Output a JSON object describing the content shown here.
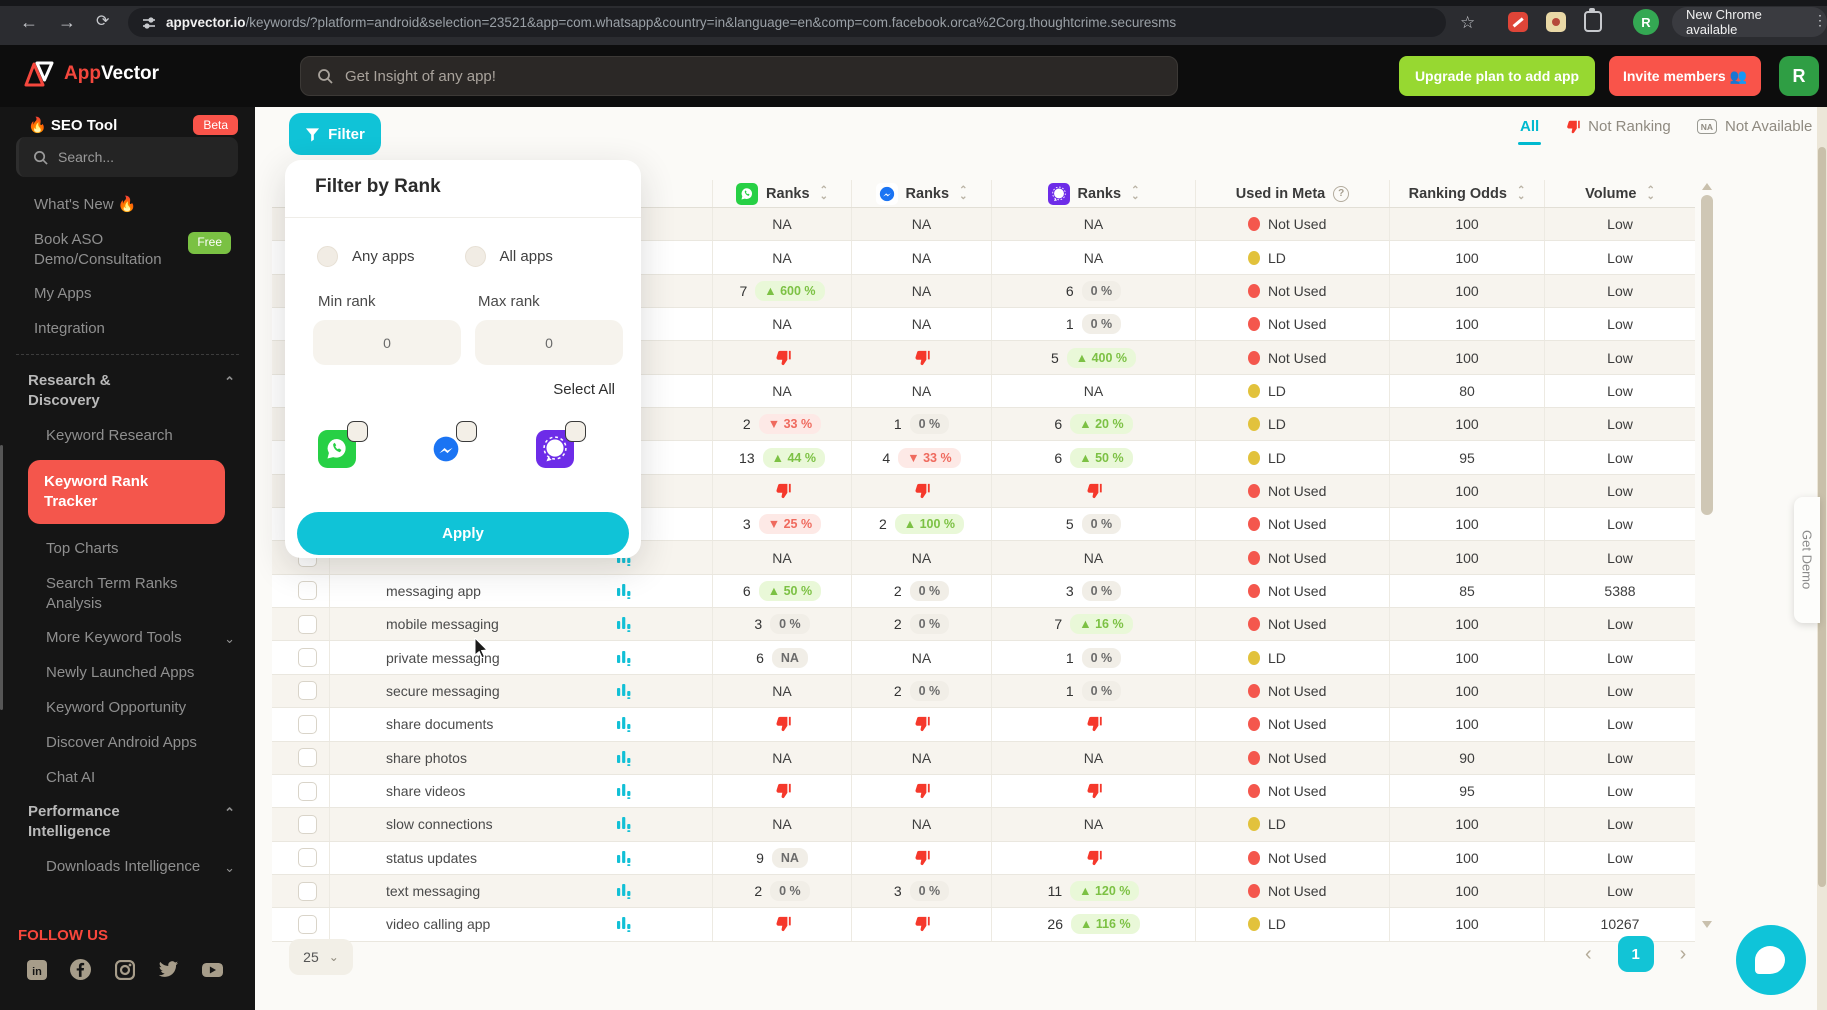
{
  "browser": {
    "url_host": "appvector.io",
    "url_rest": "/keywords/?platform=android&selection=23521&app=com.whatsapp&country=in&language=en&comp=com.facebook.orca%2Corg.thoughtcrime.securesms",
    "new_chrome_label": "New Chrome available",
    "profile_initial": "R"
  },
  "header": {
    "logo_primary": "App",
    "logo_secondary": "Vector",
    "search_placeholder": "Get Insight of any app!",
    "upgrade_label": "Upgrade plan to add app",
    "invite_label": "Invite members 👥",
    "avatar_initial": "R"
  },
  "sidebar": {
    "tool_title": "🔥 SEO Tool",
    "tool_badge": "Beta",
    "search_placeholder": "Search...",
    "items": [
      {
        "label": "What's New 🔥"
      },
      {
        "label": "Book ASO Demo/Consultation",
        "badge": "Free"
      },
      {
        "label": "My Apps"
      },
      {
        "label": "Integration"
      },
      {
        "type": "divider"
      },
      {
        "label": "Research & Discovery",
        "type": "section",
        "chevron": "up"
      },
      {
        "label": "Keyword Research",
        "indent": 1
      },
      {
        "label": "Keyword Rank Tracker",
        "indent": 1,
        "active": true
      },
      {
        "label": "Top Charts",
        "indent": 1
      },
      {
        "label": "Search Term Ranks Analysis",
        "indent": 1
      },
      {
        "label": "More Keyword Tools",
        "indent": 1,
        "chevron": "down"
      },
      {
        "label": "Newly Launched Apps",
        "indent": 1
      },
      {
        "label": "Keyword Opportunity",
        "indent": 1
      },
      {
        "label": "Discover Android Apps",
        "indent": 1
      },
      {
        "label": "Chat AI",
        "indent": 1
      },
      {
        "label": "Performance Intelligence",
        "type": "section",
        "chevron": "up"
      },
      {
        "label": "Downloads Intelligence",
        "indent": 1,
        "chevron": "down"
      }
    ],
    "follow_us": "FOLLOW US",
    "social": [
      "linkedin",
      "facebook",
      "instagram",
      "twitter",
      "youtube"
    ]
  },
  "view_tabs": {
    "all": "All",
    "not_ranking": "Not Ranking",
    "not_available_abbr": "NA",
    "not_available": "Not Available"
  },
  "filter": {
    "button_label": "Filter",
    "title": "Filter by Rank",
    "any_apps": "Any apps",
    "all_apps": "All apps",
    "min_label": "Min rank",
    "max_label": "Max rank",
    "min_value": "0",
    "max_value": "0",
    "select_all": "Select All",
    "apply_label": "Apply",
    "apps": [
      "whatsapp",
      "messenger",
      "signal"
    ]
  },
  "table": {
    "columns": {
      "ranks": "Ranks",
      "used_in_meta": "Used in Meta",
      "ranking_odds": "Ranking Odds",
      "volume": "Volume"
    },
    "rank_apps": [
      "whatsapp",
      "messenger",
      "signal"
    ],
    "rows": [
      {
        "kw": "",
        "wa": {
          "t": "na"
        },
        "ms": {
          "t": "na"
        },
        "sg": {
          "t": "na"
        },
        "meta": {
          "label": "Not Used",
          "dot": "red"
        },
        "odds": "100",
        "vol": "Low"
      },
      {
        "kw": "",
        "wa": {
          "t": "na"
        },
        "ms": {
          "t": "na"
        },
        "sg": {
          "t": "na"
        },
        "meta": {
          "label": "LD",
          "dot": "yellow"
        },
        "odds": "100",
        "vol": "Low"
      },
      {
        "kw": "",
        "wa": {
          "t": "v",
          "r": "7",
          "c": "600 %",
          "d": "up"
        },
        "ms": {
          "t": "na"
        },
        "sg": {
          "t": "v",
          "r": "6",
          "c": "0 %",
          "d": "flat"
        },
        "meta": {
          "label": "Not Used",
          "dot": "red"
        },
        "odds": "100",
        "vol": "Low"
      },
      {
        "kw": "",
        "wa": {
          "t": "na"
        },
        "ms": {
          "t": "na"
        },
        "sg": {
          "t": "v",
          "r": "1",
          "c": "0 %",
          "d": "flat"
        },
        "meta": {
          "label": "Not Used",
          "dot": "red"
        },
        "odds": "100",
        "vol": "Low"
      },
      {
        "kw": "",
        "wa": {
          "t": "nr"
        },
        "ms": {
          "t": "nr"
        },
        "sg": {
          "t": "v",
          "r": "5",
          "c": "400 %",
          "d": "up"
        },
        "meta": {
          "label": "Not Used",
          "dot": "red"
        },
        "odds": "100",
        "vol": "Low"
      },
      {
        "kw": "",
        "wa": {
          "t": "na"
        },
        "ms": {
          "t": "na"
        },
        "sg": {
          "t": "na"
        },
        "meta": {
          "label": "LD",
          "dot": "yellow"
        },
        "odds": "80",
        "vol": "Low"
      },
      {
        "kw": "",
        "wa": {
          "t": "v",
          "r": "2",
          "c": "33 %",
          "d": "down"
        },
        "ms": {
          "t": "v",
          "r": "1",
          "c": "0 %",
          "d": "flat"
        },
        "sg": {
          "t": "v",
          "r": "6",
          "c": "20 %",
          "d": "up"
        },
        "meta": {
          "label": "LD",
          "dot": "yellow"
        },
        "odds": "100",
        "vol": "Low"
      },
      {
        "kw": "",
        "wa": {
          "t": "v",
          "r": "13",
          "c": "44 %",
          "d": "up"
        },
        "ms": {
          "t": "v",
          "r": "4",
          "c": "33 %",
          "d": "down"
        },
        "sg": {
          "t": "v",
          "r": "6",
          "c": "50 %",
          "d": "up"
        },
        "meta": {
          "label": "LD",
          "dot": "yellow"
        },
        "odds": "95",
        "vol": "Low"
      },
      {
        "kw": "",
        "wa": {
          "t": "nr"
        },
        "ms": {
          "t": "nr"
        },
        "sg": {
          "t": "nr"
        },
        "meta": {
          "label": "Not Used",
          "dot": "red"
        },
        "odds": "100",
        "vol": "Low"
      },
      {
        "kw": "",
        "wa": {
          "t": "v",
          "r": "3",
          "c": "25 %",
          "d": "down"
        },
        "ms": {
          "t": "v",
          "r": "2",
          "c": "100 %",
          "d": "up"
        },
        "sg": {
          "t": "v",
          "r": "5",
          "c": "0 %",
          "d": "flat"
        },
        "meta": {
          "label": "Not Used",
          "dot": "red"
        },
        "odds": "100",
        "vol": "Low"
      },
      {
        "kw": "",
        "wa": {
          "t": "na"
        },
        "ms": {
          "t": "na"
        },
        "sg": {
          "t": "na"
        },
        "meta": {
          "label": "Not Used",
          "dot": "red"
        },
        "odds": "100",
        "vol": "Low"
      },
      {
        "kw": "messaging app",
        "wa": {
          "t": "v",
          "r": "6",
          "c": "50 %",
          "d": "up"
        },
        "ms": {
          "t": "v",
          "r": "2",
          "c": "0 %",
          "d": "flat"
        },
        "sg": {
          "t": "v",
          "r": "3",
          "c": "0 %",
          "d": "flat"
        },
        "meta": {
          "label": "Not Used",
          "dot": "red"
        },
        "odds": "85",
        "vol": "5388"
      },
      {
        "kw": "mobile messaging",
        "wa": {
          "t": "v",
          "r": "3",
          "c": "0 %",
          "d": "flat"
        },
        "ms": {
          "t": "v",
          "r": "2",
          "c": "0 %",
          "d": "flat"
        },
        "sg": {
          "t": "v",
          "r": "7",
          "c": "16 %",
          "d": "up"
        },
        "meta": {
          "label": "Not Used",
          "dot": "red"
        },
        "odds": "100",
        "vol": "Low"
      },
      {
        "kw": "private messaging",
        "wa": {
          "t": "v",
          "r": "6",
          "c": "NA",
          "d": "nab"
        },
        "ms": {
          "t": "na"
        },
        "sg": {
          "t": "v",
          "r": "1",
          "c": "0 %",
          "d": "flat"
        },
        "meta": {
          "label": "LD",
          "dot": "yellow"
        },
        "odds": "100",
        "vol": "Low"
      },
      {
        "kw": "secure messaging",
        "wa": {
          "t": "na"
        },
        "ms": {
          "t": "v",
          "r": "2",
          "c": "0 %",
          "d": "flat"
        },
        "sg": {
          "t": "v",
          "r": "1",
          "c": "0 %",
          "d": "flat"
        },
        "meta": {
          "label": "Not Used",
          "dot": "red"
        },
        "odds": "100",
        "vol": "Low"
      },
      {
        "kw": "share documents",
        "wa": {
          "t": "nr"
        },
        "ms": {
          "t": "nr"
        },
        "sg": {
          "t": "nr"
        },
        "meta": {
          "label": "Not Used",
          "dot": "red"
        },
        "odds": "100",
        "vol": "Low"
      },
      {
        "kw": "share photos",
        "wa": {
          "t": "na"
        },
        "ms": {
          "t": "na"
        },
        "sg": {
          "t": "na"
        },
        "meta": {
          "label": "Not Used",
          "dot": "red"
        },
        "odds": "90",
        "vol": "Low"
      },
      {
        "kw": "share videos",
        "wa": {
          "t": "nr"
        },
        "ms": {
          "t": "nr"
        },
        "sg": {
          "t": "nr"
        },
        "meta": {
          "label": "Not Used",
          "dot": "red"
        },
        "odds": "95",
        "vol": "Low"
      },
      {
        "kw": "slow connections",
        "wa": {
          "t": "na"
        },
        "ms": {
          "t": "na"
        },
        "sg": {
          "t": "na"
        },
        "meta": {
          "label": "LD",
          "dot": "yellow"
        },
        "odds": "100",
        "vol": "Low"
      },
      {
        "kw": "status updates",
        "wa": {
          "t": "v",
          "r": "9",
          "c": "NA",
          "d": "nab"
        },
        "ms": {
          "t": "nr"
        },
        "sg": {
          "t": "nr"
        },
        "meta": {
          "label": "Not Used",
          "dot": "red"
        },
        "odds": "100",
        "vol": "Low"
      },
      {
        "kw": "text messaging",
        "wa": {
          "t": "v",
          "r": "2",
          "c": "0 %",
          "d": "flat"
        },
        "ms": {
          "t": "v",
          "r": "3",
          "c": "0 %",
          "d": "flat"
        },
        "sg": {
          "t": "v",
          "r": "11",
          "c": "120 %",
          "d": "up"
        },
        "meta": {
          "label": "Not Used",
          "dot": "red"
        },
        "odds": "100",
        "vol": "Low"
      },
      {
        "kw": "video calling app",
        "wa": {
          "t": "nr"
        },
        "ms": {
          "t": "nr"
        },
        "sg": {
          "t": "v",
          "r": "26",
          "c": "116 %",
          "d": "up"
        },
        "meta": {
          "label": "LD",
          "dot": "yellow"
        },
        "odds": "100",
        "vol": "10267"
      }
    ]
  },
  "pagination": {
    "page_size": "25",
    "current_page": "1"
  },
  "side_tab": {
    "label": "Get Demo"
  },
  "colors": {
    "accent_cyan": "#10c3d7",
    "brand_red": "#f4564c",
    "lime_green": "#97d831",
    "badge_up_text": "#7cc144",
    "badge_down_text": "#ef6a5e",
    "dot_not_used": "#f4574d",
    "dot_ld": "#e2c23c",
    "whatsapp_green": "#27d045",
    "messenger_blue": "#1b74f3",
    "signal_purple": "#6d2ce8"
  }
}
